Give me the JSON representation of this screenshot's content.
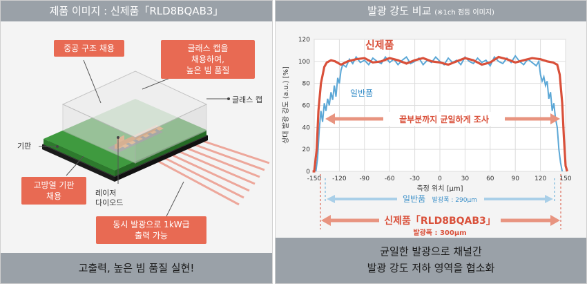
{
  "left": {
    "title": "제품 이미지 : 신제품「RLD8BQAB3」",
    "callouts": {
      "hollow": "중공 구조 채용",
      "glass_cap_adopt": [
        "글래스 캡을",
        "채용하여,",
        "높은 빔 품질"
      ],
      "heat_sub": [
        "고방열 기판",
        "채용"
      ],
      "simul": [
        "동시 발광으로 1kW급",
        "출력 가능"
      ]
    },
    "labels": {
      "glass_cap": "글래스 캡",
      "substrate": "기판",
      "laser_diode": [
        "레이저",
        "다이오드"
      ]
    },
    "footer": "고출력, 높은 빔 품질 실현!"
  },
  "right": {
    "title": "발광 강도 비교",
    "title_note": "(※1ch 점등 이미지)",
    "new_label": "신제품",
    "std_label": "일반품",
    "uniform_label": "끝부분까지 균일하게 조사",
    "footer": [
      "균일한 발광으로 채널간",
      "발광 강도 저하 영역을 협소화"
    ],
    "std_width_name": "일반품",
    "std_width_val": "발광폭 : 290μm",
    "new_width_name": "신제품「RLD8BQAB3」",
    "new_width_val": "발광폭 : 300μm"
  },
  "colors": {
    "new": "#d9503a",
    "std": "#5ba7d6",
    "callout": "#e86a53",
    "header": "#9aa1a8"
  },
  "chart_data": {
    "type": "line",
    "xlabel": "측정 위치 [μm]",
    "ylabel": "상대 발광 강도 (a.u.) [%]",
    "xlim": [
      -150,
      150
    ],
    "ylim": [
      0,
      120
    ],
    "xticks": [
      -150,
      -120,
      -90,
      -60,
      -30,
      0,
      30,
      60,
      90,
      120,
      150
    ],
    "yticks": [
      0,
      20,
      40,
      60,
      80,
      100,
      120
    ],
    "grid": true,
    "series": [
      {
        "name": "신제품",
        "x": [
          -152,
          -150,
          -147,
          -145,
          -142,
          -138,
          -135,
          -130,
          -125,
          -118,
          -110,
          -100,
          -90,
          -80,
          -70,
          -60,
          -50,
          -40,
          -30,
          -20,
          -10,
          0,
          10,
          20,
          30,
          40,
          50,
          60,
          70,
          80,
          90,
          100,
          110,
          120,
          128,
          135,
          140,
          143,
          146,
          148,
          150,
          152
        ],
        "y": [
          0,
          0,
          20,
          55,
          80,
          95,
          99,
          101,
          100,
          97,
          100,
          102,
          103,
          99,
          100,
          103,
          101,
          98,
          101,
          103,
          100,
          99,
          97,
          100,
          103,
          101,
          97,
          99,
          104,
          102,
          99,
          101,
          103,
          102,
          100,
          99,
          97,
          88,
          62,
          30,
          5,
          0
        ]
      },
      {
        "name": "일반품",
        "x": [
          -148,
          -146,
          -144,
          -142,
          -140,
          -138,
          -136,
          -134,
          -132,
          -130,
          -128,
          -126,
          -124,
          -122,
          -120,
          -118,
          -116,
          -112,
          -108,
          -104,
          -100,
          -95,
          -90,
          -85,
          -80,
          -75,
          -70,
          -65,
          -60,
          -55,
          -50,
          -45,
          -40,
          -35,
          -30,
          -25,
          -20,
          -15,
          -10,
          -5,
          0,
          5,
          10,
          15,
          20,
          25,
          30,
          35,
          40,
          45,
          50,
          55,
          60,
          65,
          70,
          75,
          80,
          85,
          90,
          95,
          100,
          105,
          110,
          115,
          118,
          120,
          122,
          124,
          126,
          128,
          130,
          132,
          134,
          136,
          138,
          140,
          142,
          144,
          146
        ],
        "y": [
          0,
          12,
          38,
          55,
          45,
          62,
          55,
          66,
          60,
          72,
          65,
          78,
          68,
          85,
          80,
          92,
          97,
          95,
          102,
          98,
          104,
          99,
          101,
          97,
          103,
          100,
          98,
          104,
          99,
          102,
          97,
          101,
          104,
          98,
          100,
          103,
          97,
          101,
          99,
          104,
          100,
          97,
          103,
          99,
          101,
          97,
          104,
          100,
          98,
          103,
          99,
          101,
          96,
          104,
          100,
          98,
          103,
          99,
          105,
          100,
          97,
          102,
          99,
          96,
          100,
          88,
          82,
          86,
          78,
          82,
          66,
          72,
          55,
          62,
          48,
          40,
          20,
          8,
          0
        ]
      }
    ]
  }
}
